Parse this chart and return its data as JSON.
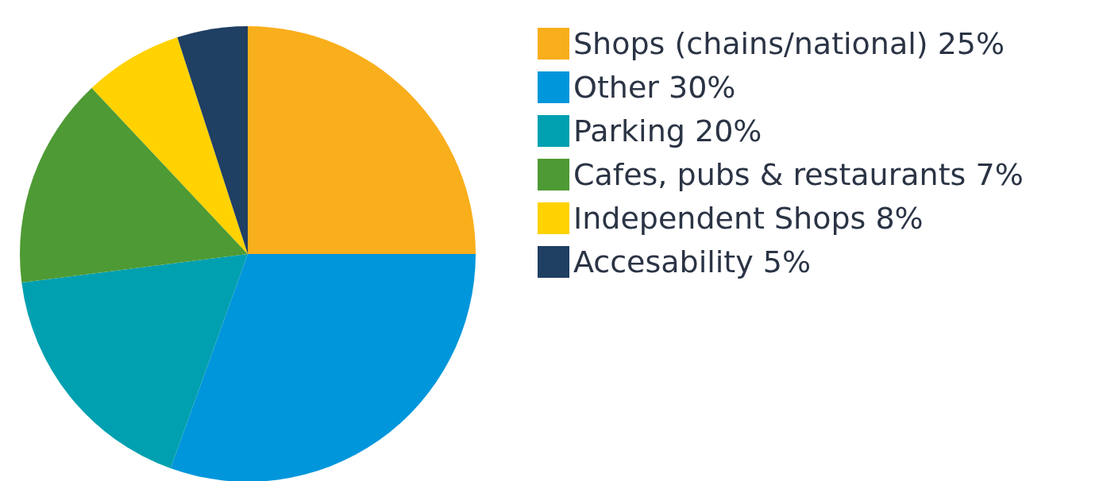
{
  "chart_data": {
    "type": "pie",
    "categories": [
      "Shops (chains/national) 25%",
      "Other 30%",
      "Parking 20%",
      "Cafes, pubs & restaurants 7%",
      "Independent Shops 8%",
      "Accesability 5%"
    ],
    "values": [
      25,
      30.5,
      17.5,
      15,
      7,
      5
    ],
    "colors": [
      "#f9ae1b",
      "#0096db",
      "#00a0b0",
      "#4e9a34",
      "#ffd200",
      "#1f3f63"
    ],
    "legend": "top right"
  }
}
